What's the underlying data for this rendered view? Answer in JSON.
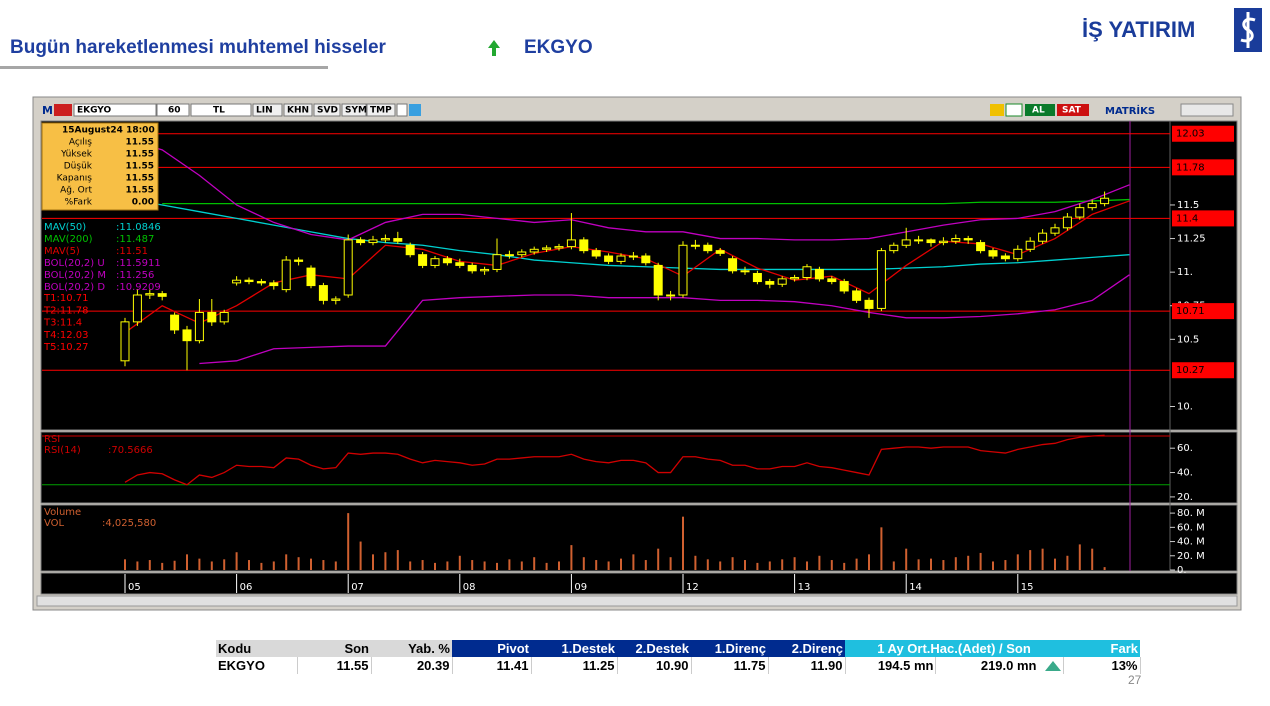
{
  "header": {
    "title": "Bugün hareketlenmesi muhtemel hisseler",
    "symbol": "EKGYO",
    "logo": "İŞ YATIRIM"
  },
  "chart_data": {
    "type": "candlestick",
    "toolbar": {
      "menu": "M",
      "symbol": "EKGYO",
      "period": "60",
      "currency": "TL",
      "buttons": [
        "LIN",
        "KHN",
        "SVD",
        "SYM",
        "TMP"
      ],
      "buy": "AL",
      "sell": "SAT",
      "brand": "MATRİKS"
    },
    "info_box": {
      "date": "15August24 18:00",
      "rows": [
        [
          "Açılış",
          "11.55"
        ],
        [
          "Yüksek",
          "11.55"
        ],
        [
          "Düşük",
          "11.55"
        ],
        [
          "Kapanış",
          "11.55"
        ],
        [
          "Ağ. Ort",
          "11.55"
        ],
        [
          "%Fark",
          "0.00"
        ]
      ]
    },
    "categories": [
      "05",
      null,
      null,
      null,
      null,
      null,
      null,
      null,
      null,
      "06",
      null,
      null,
      null,
      null,
      null,
      null,
      null,
      null,
      "07",
      null,
      null,
      null,
      null,
      null,
      null,
      null,
      null,
      "08",
      null,
      null,
      null,
      null,
      null,
      null,
      null,
      null,
      "09",
      null,
      null,
      null,
      null,
      null,
      null,
      null,
      null,
      "12",
      null,
      null,
      null,
      null,
      null,
      null,
      null,
      null,
      "13",
      null,
      null,
      null,
      null,
      null,
      null,
      null,
      null,
      "14",
      null,
      null,
      null,
      null,
      null,
      null,
      null,
      null,
      "15",
      null,
      null,
      null,
      null,
      null,
      null,
      null
    ],
    "open": [
      10.34,
      10.63,
      10.83,
      10.84,
      10.68,
      10.57,
      10.49,
      10.7,
      10.63,
      10.92,
      10.94,
      10.93,
      10.92,
      10.87,
      11.09,
      11.03,
      10.9,
      10.79,
      10.83,
      11.24,
      11.22,
      11.24,
      11.25,
      11.2,
      11.13,
      11.05,
      11.1,
      11.07,
      11.05,
      11.01,
      11.02,
      11.13,
      11.13,
      11.15,
      11.17,
      11.18,
      11.19,
      11.24,
      11.16,
      11.12,
      11.08,
      11.12,
      11.12,
      11.05,
      10.83,
      10.83,
      11.2,
      11.2,
      11.16,
      11.1,
      11.01,
      10.99,
      10.93,
      10.91,
      10.95,
      10.96,
      11.02,
      10.95,
      10.93,
      10.86,
      10.79,
      10.73,
      11.16,
      11.2,
      11.24,
      11.24,
      11.22,
      11.23,
      11.25,
      11.22,
      11.16,
      11.12,
      11.1,
      11.17,
      11.23,
      11.29,
      11.33,
      11.41,
      11.48,
      11.51
    ],
    "high": [
      10.66,
      10.87,
      10.87,
      10.86,
      10.7,
      10.6,
      10.8,
      10.8,
      10.72,
      10.97,
      10.96,
      10.95,
      10.94,
      11.12,
      11.11,
      11.05,
      10.92,
      10.82,
      11.28,
      11.26,
      11.27,
      11.28,
      11.3,
      11.22,
      11.15,
      11.12,
      11.12,
      11.1,
      11.07,
      11.04,
      11.25,
      11.16,
      11.17,
      11.19,
      11.2,
      11.21,
      11.44,
      11.26,
      11.18,
      11.14,
      11.14,
      11.15,
      11.14,
      11.07,
      10.86,
      11.23,
      11.24,
      11.22,
      11.18,
      11.12,
      11.04,
      11.01,
      10.95,
      10.97,
      10.98,
      11.06,
      11.04,
      10.97,
      10.95,
      10.88,
      10.81,
      11.18,
      11.22,
      11.33,
      11.27,
      11.25,
      11.26,
      11.28,
      11.27,
      11.24,
      11.18,
      11.14,
      11.2,
      11.26,
      11.32,
      11.36,
      11.44,
      11.51,
      11.54,
      11.6
    ],
    "low": [
      10.3,
      10.6,
      10.8,
      10.79,
      10.54,
      10.27,
      10.47,
      10.6,
      10.61,
      10.9,
      10.91,
      10.9,
      10.87,
      10.85,
      11.05,
      10.88,
      10.76,
      10.76,
      10.81,
      11.2,
      11.2,
      11.22,
      11.21,
      11.11,
      11.03,
      11.03,
      11.05,
      11.03,
      10.99,
      10.98,
      11.0,
      11.1,
      11.11,
      11.13,
      11.15,
      11.16,
      11.17,
      11.14,
      11.1,
      11.06,
      11.06,
      11.09,
      11.05,
      10.79,
      10.79,
      10.81,
      11.17,
      11.14,
      11.12,
      10.99,
      10.98,
      10.91,
      10.88,
      10.89,
      10.93,
      10.94,
      10.93,
      10.91,
      10.84,
      10.77,
      10.66,
      10.71,
      11.14,
      11.18,
      11.21,
      11.19,
      11.2,
      11.21,
      11.21,
      11.14,
      11.1,
      11.08,
      11.08,
      11.15,
      11.21,
      11.27,
      11.31,
      11.39,
      11.46,
      11.49
    ],
    "close": [
      10.63,
      10.83,
      10.84,
      10.82,
      10.57,
      10.49,
      10.7,
      10.63,
      10.7,
      10.94,
      10.93,
      10.92,
      10.9,
      11.09,
      11.08,
      10.9,
      10.79,
      10.8,
      11.24,
      11.22,
      11.24,
      11.25,
      11.23,
      11.13,
      11.05,
      11.1,
      11.07,
      11.05,
      11.01,
      11.02,
      11.13,
      11.13,
      11.15,
      11.17,
      11.18,
      11.19,
      11.24,
      11.16,
      11.12,
      11.08,
      11.12,
      11.12,
      11.07,
      10.83,
      10.83,
      11.2,
      11.2,
      11.16,
      11.14,
      11.01,
      11.01,
      10.93,
      10.91,
      10.95,
      10.96,
      11.04,
      10.95,
      10.93,
      10.86,
      10.79,
      10.73,
      11.16,
      11.2,
      11.24,
      11.24,
      11.22,
      11.23,
      11.25,
      11.24,
      11.16,
      11.12,
      11.1,
      11.17,
      11.23,
      11.29,
      11.33,
      11.41,
      11.48,
      11.51,
      11.55
    ],
    "color": "#ffff00",
    "ylim": [
      9.84,
      12.11
    ],
    "yticks": [
      {
        "value": 10,
        "label": "10."
      },
      10.5,
      10.75,
      {
        "value": 11,
        "label": "11."
      },
      11.25,
      11.5
    ],
    "levels": [
      {
        "label": "T1:10.71",
        "value": 10.71
      },
      {
        "label": "T2:11.78",
        "value": 11.78
      },
      {
        "label": "T3:11.4",
        "value": 11.4
      },
      {
        "label": "T4:12.03",
        "value": 12.03
      },
      {
        "label": "T5:10.27",
        "value": 10.27
      }
    ],
    "level_color": "#ff0000",
    "indicators": [
      {
        "name": "MAV(50)",
        "readout": ":11.0846",
        "color": "#00d0d0",
        "x": [
          -6,
          -3,
          0,
          3,
          6,
          9,
          12,
          15,
          18,
          21,
          24,
          27,
          30,
          33,
          36,
          39,
          42,
          45,
          48,
          51,
          54,
          57,
          60,
          63,
          66,
          69,
          72,
          75,
          78,
          81
        ],
        "values": [
          11.69,
          11.61,
          11.55,
          11.5,
          11.45,
          11.4,
          11.35,
          11.3,
          11.25,
          11.22,
          11.2,
          11.16,
          11.13,
          11.09,
          11.07,
          11.05,
          11.04,
          11.03,
          11.02,
          11.02,
          11.02,
          11.02,
          11.02,
          11.03,
          11.04,
          11.06,
          11.07,
          11.09,
          11.11,
          11.13
        ]
      },
      {
        "name": "MAV(200)",
        "readout": ":11.487",
        "color": "#00c000",
        "x": [
          -6,
          -3,
          0,
          3,
          6,
          9,
          12,
          15,
          18,
          21,
          24,
          27,
          30,
          33,
          36,
          39,
          42,
          45,
          48,
          51,
          54,
          57,
          60,
          63,
          66,
          69,
          72,
          75,
          78,
          81
        ],
        "values": [
          null,
          null,
          null,
          11.51,
          11.51,
          11.51,
          11.51,
          11.51,
          11.51,
          11.51,
          11.51,
          11.51,
          11.51,
          11.51,
          11.51,
          11.51,
          11.51,
          11.51,
          11.51,
          11.51,
          11.51,
          11.51,
          11.51,
          11.51,
          11.51,
          11.52,
          11.52,
          11.52,
          11.53,
          11.54
        ]
      },
      {
        "name": "MAV(5)",
        "readout": ":11.51",
        "color": "#e00000",
        "x": [
          -6,
          -3,
          0,
          3,
          6,
          9,
          12,
          15,
          18,
          21,
          24,
          27,
          30,
          33,
          36,
          39,
          42,
          45,
          48,
          51,
          54,
          57,
          60,
          63,
          66,
          69,
          72,
          75,
          78,
          81
        ],
        "values": [
          null,
          null,
          10.55,
          10.75,
          10.62,
          10.75,
          10.92,
          10.98,
          10.95,
          11.2,
          11.17,
          11.08,
          11.05,
          11.14,
          11.19,
          11.15,
          11.1,
          10.97,
          11.17,
          11.03,
          10.94,
          10.97,
          10.84,
          11.05,
          11.23,
          11.21,
          11.13,
          11.25,
          11.43,
          11.53
        ]
      },
      {
        "name": "BOL(20,2) U",
        "readout": ":11.5911",
        "color": "#c000c0",
        "x": [
          -6,
          -3,
          0,
          3,
          6,
          9,
          12,
          15,
          18,
          21,
          24,
          27,
          30,
          33,
          36,
          39,
          42,
          45,
          48,
          51,
          54,
          57,
          60,
          63,
          66,
          69,
          72,
          75,
          78,
          81
        ],
        "values": [
          11.99,
          11.99,
          11.99,
          11.91,
          11.72,
          11.5,
          11.37,
          11.28,
          11.24,
          11.37,
          11.43,
          11.43,
          11.4,
          11.37,
          11.39,
          11.33,
          11.3,
          11.3,
          11.25,
          11.25,
          11.24,
          11.24,
          11.25,
          11.3,
          11.35,
          11.39,
          11.4,
          11.45,
          11.54,
          11.65
        ]
      },
      {
        "name": "BOL(20,2) M",
        "readout": ":11.256",
        "color": "#c000c0"
      },
      {
        "name": "BOL(20,2) D",
        "readout": ":10.9209",
        "color": "#c000c0",
        "x": [
          -6,
          -3,
          0,
          3,
          6,
          9,
          12,
          15,
          18,
          21,
          24,
          27,
          30,
          33,
          36,
          39,
          42,
          45,
          48,
          51,
          54,
          57,
          60,
          63,
          66,
          69,
          72,
          75,
          78,
          81
        ],
        "values": [
          null,
          null,
          null,
          null,
          10.32,
          10.34,
          10.43,
          10.44,
          10.45,
          10.45,
          10.79,
          10.81,
          10.82,
          10.83,
          10.83,
          10.81,
          10.81,
          10.81,
          10.79,
          10.79,
          10.78,
          10.75,
          10.7,
          10.66,
          10.66,
          10.67,
          10.69,
          10.72,
          10.79,
          10.98
        ]
      }
    ],
    "rsi": {
      "title": "RSI",
      "name": "RSI(14)",
      "readout": ":70.5666",
      "color": "#d00000",
      "values": [
        32,
        38,
        40,
        39,
        34,
        30,
        38,
        36,
        40,
        46,
        45,
        45,
        44,
        52,
        51,
        46,
        43,
        44,
        56,
        55,
        56,
        56,
        55,
        51,
        48,
        50,
        49,
        48,
        46,
        47,
        51,
        51,
        52,
        53,
        53,
        53,
        55,
        51,
        49,
        48,
        50,
        50,
        48,
        40,
        40,
        53,
        53,
        51,
        50,
        46,
        46,
        43,
        43,
        45,
        45,
        48,
        45,
        44,
        42,
        40,
        38,
        59,
        60,
        61,
        61,
        60,
        61,
        61,
        61,
        58,
        57,
        56,
        59,
        61,
        63,
        64,
        67,
        69,
        70,
        70.5666
      ],
      "ylim": [
        15,
        73.3
      ],
      "yticks": [
        {
          "value": 20,
          "label": "20."
        },
        {
          "value": 40,
          "label": "40."
        },
        {
          "value": 60,
          "label": "60."
        }
      ],
      "bands": [
        {
          "value": 70,
          "color": "#d00000"
        },
        {
          "value": 30,
          "color": "#00a000"
        }
      ]
    },
    "volume": {
      "title": "Volume",
      "name": "VOL",
      "readout": ":4,025,580",
      "color": "#d06030",
      "values": [
        15000000,
        12000000,
        14000000,
        10000000,
        13000000,
        22000000,
        16000000,
        12000000,
        15000000,
        25000000,
        14000000,
        10000000,
        12000000,
        22000000,
        18000000,
        16000000,
        14000000,
        12000000,
        80000000,
        40000000,
        22000000,
        25000000,
        28000000,
        12000000,
        14000000,
        10000000,
        12000000,
        20000000,
        14000000,
        12000000,
        10000000,
        15000000,
        12000000,
        18000000,
        10000000,
        12000000,
        35000000,
        18000000,
        14000000,
        12000000,
        16000000,
        22000000,
        14000000,
        30000000,
        18000000,
        75000000,
        20000000,
        15000000,
        12000000,
        18000000,
        14000000,
        10000000,
        12000000,
        15000000,
        18000000,
        12000000,
        20000000,
        14000000,
        10000000,
        16000000,
        22000000,
        60000000,
        12000000,
        30000000,
        15000000,
        16000000,
        14000000,
        18000000,
        20000000,
        24000000,
        12000000,
        14000000,
        22000000,
        28000000,
        30000000,
        16000000,
        20000000,
        36000000,
        30000000,
        4025580
      ],
      "ylim": [
        0,
        90000000
      ],
      "yticks": [
        {
          "value": 0,
          "label": "0."
        },
        {
          "value": 20000000,
          "label": "20. M"
        },
        {
          "value": 40000000,
          "label": "40. M"
        },
        {
          "value": 60000000,
          "label": "60. M"
        },
        {
          "value": 80000000,
          "label": "80. M"
        }
      ]
    }
  },
  "table": {
    "header": [
      "Kodu",
      "Son",
      "Yab. %",
      "Pivot",
      "1.Destek",
      "2.Destek",
      "1.Direnç",
      "2.Direnç",
      "1 Ay Ort.Hac.(Adet)  /  Son",
      "Fark"
    ],
    "rows": [
      [
        "EKGYO",
        "11.55",
        "20.39",
        "11.41",
        "11.25",
        "10.90",
        "11.75",
        "11.90",
        "194.5 mn",
        "219.0 mn",
        "13%"
      ]
    ]
  },
  "page_number": "27"
}
